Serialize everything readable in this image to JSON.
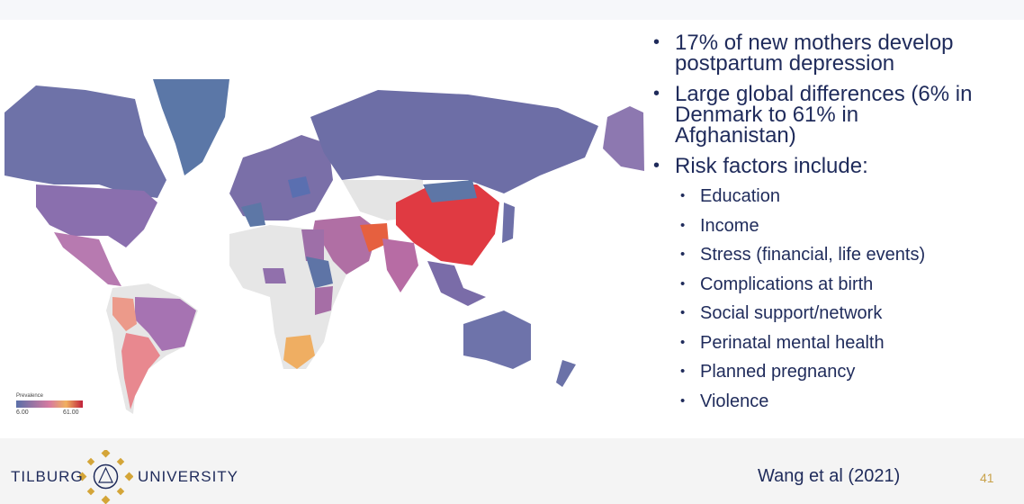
{
  "slide": {
    "bullets": [
      {
        "lines": [
          "17% of new mothers develop",
          "postpartum depression"
        ]
      },
      {
        "lines": [
          "Large global differences (6% in",
          "Denmark to 61% in",
          "Afghanistan)"
        ]
      },
      {
        "lines": [
          "Risk factors include:"
        ],
        "sub": [
          "Education",
          "Income",
          "Stress (financial, life events)",
          "Complications at birth",
          "Social support/network",
          "Perinatal mental health",
          "Planned pregnancy",
          "Violence"
        ]
      }
    ],
    "legend": {
      "title": "Prevalence",
      "min": "6.00",
      "max": "61.00"
    },
    "citation": "Wang et al (2021)",
    "page_number": "41",
    "logo": {
      "left": "TILBURG",
      "right": "UNIVERSITY"
    }
  }
}
